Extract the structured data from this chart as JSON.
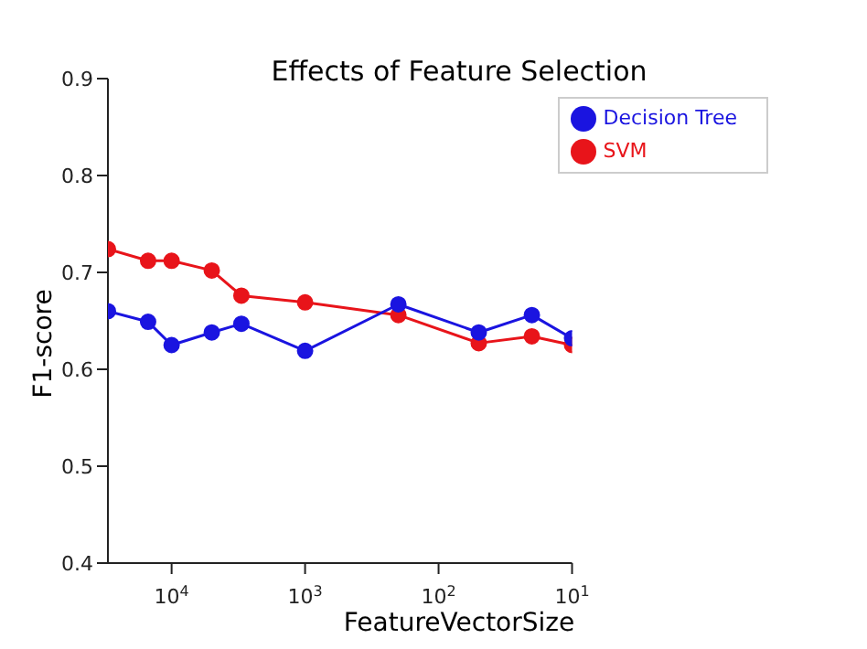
{
  "chart_data": {
    "type": "line",
    "title": "Effects of Feature Selection",
    "xlabel": "FeatureVectorSize",
    "ylabel": "F1-score",
    "x": [
      30000,
      15000,
      10000,
      5000,
      3000,
      1000,
      200,
      50,
      20,
      10
    ],
    "series": [
      {
        "name": "SVM",
        "color": "#e8141a",
        "values": [
          0.724,
          0.712,
          0.712,
          0.702,
          0.676,
          0.669,
          0.656,
          0.627,
          0.634,
          0.625
        ]
      },
      {
        "name": "Decision Tree",
        "color": "#1a14e0",
        "values": [
          0.66,
          0.649,
          0.625,
          0.638,
          0.647,
          0.619,
          0.667,
          0.638,
          0.656,
          0.632
        ]
      }
    ],
    "log": "x",
    "xlim": [
      30000,
      10
    ],
    "xticks": [
      {
        "value": 10000,
        "label": "10$^{4}$"
      },
      {
        "value": 1000,
        "label": "10$^{3}$"
      },
      {
        "value": 100,
        "label": "10$^{2}$"
      },
      {
        "value": 10,
        "label": "10$^{1}$"
      }
    ],
    "ylim": [
      0.4,
      0.9
    ],
    "yticks": [
      0.4,
      0.5,
      0.6,
      0.7,
      0.8,
      0.9
    ],
    "grid": false,
    "legend": "top right",
    "marker": "circle",
    "line_style": "solid"
  }
}
